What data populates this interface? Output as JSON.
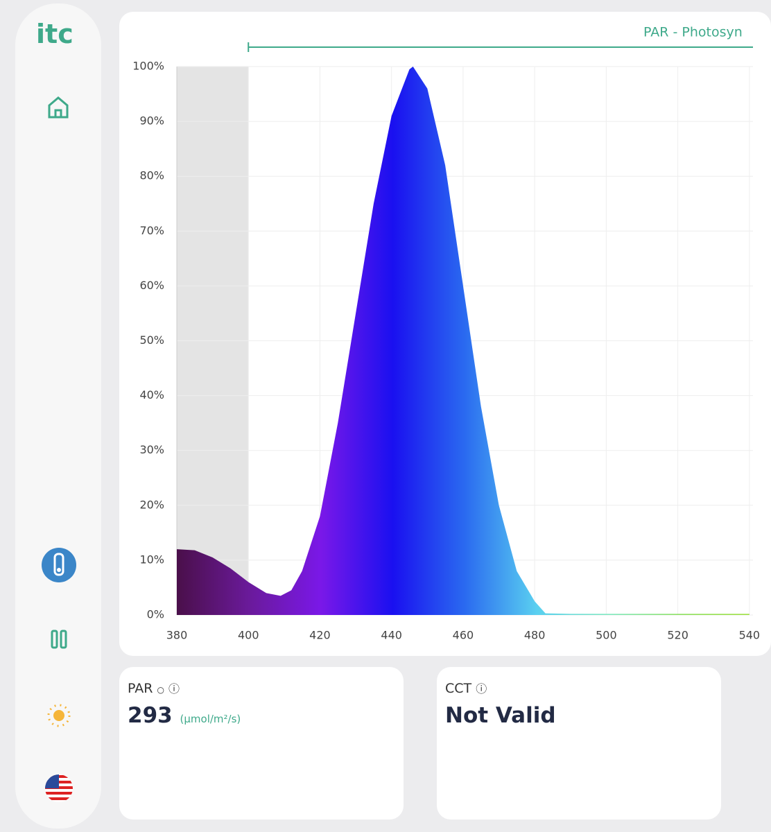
{
  "sidebar": {
    "logo": "itc"
  },
  "chart_data": {
    "type": "area",
    "header": "PAR - Photosyn",
    "par_start": 400,
    "shaded_xrange": [
      380,
      400
    ],
    "x": [
      380,
      385,
      390,
      395,
      400,
      405,
      409,
      412,
      415,
      420,
      425,
      430,
      435,
      440,
      445,
      446,
      450,
      455,
      460,
      465,
      470,
      475,
      480,
      483,
      490,
      500,
      520,
      540
    ],
    "series": [
      {
        "values": [
          12,
          11.8,
          10.5,
          8.5,
          6,
          4,
          3.5,
          4.5,
          8,
          18,
          35,
          55,
          75,
          91,
          99.5,
          100,
          96,
          82,
          60,
          38,
          20,
          8,
          2.5,
          0.3,
          0.2,
          0.2,
          0.2,
          0.2
        ]
      }
    ],
    "xlim": [
      380,
      541
    ],
    "xticks": [
      380,
      400,
      420,
      440,
      460,
      480,
      500,
      520,
      540
    ],
    "ylim": [
      0,
      100
    ],
    "yticks": [
      {
        "value": 0,
        "label": "0%"
      },
      {
        "value": 10,
        "label": "10%"
      },
      {
        "value": 20,
        "label": "20%"
      },
      {
        "value": 30,
        "label": "30%"
      },
      {
        "value": 40,
        "label": "40%"
      },
      {
        "value": 50,
        "label": "50%"
      },
      {
        "value": 60,
        "label": "60%"
      },
      {
        "value": 70,
        "label": "70%"
      },
      {
        "value": 80,
        "label": "80%"
      },
      {
        "value": 90,
        "label": "90%"
      },
      {
        "value": 100,
        "label": "100%"
      }
    ],
    "grid": true
  },
  "cards": [
    {
      "label": "PAR",
      "value": "293",
      "unit": "(µmol/m²/s)"
    },
    {
      "label": "CCT",
      "value": "Not Valid"
    }
  ]
}
